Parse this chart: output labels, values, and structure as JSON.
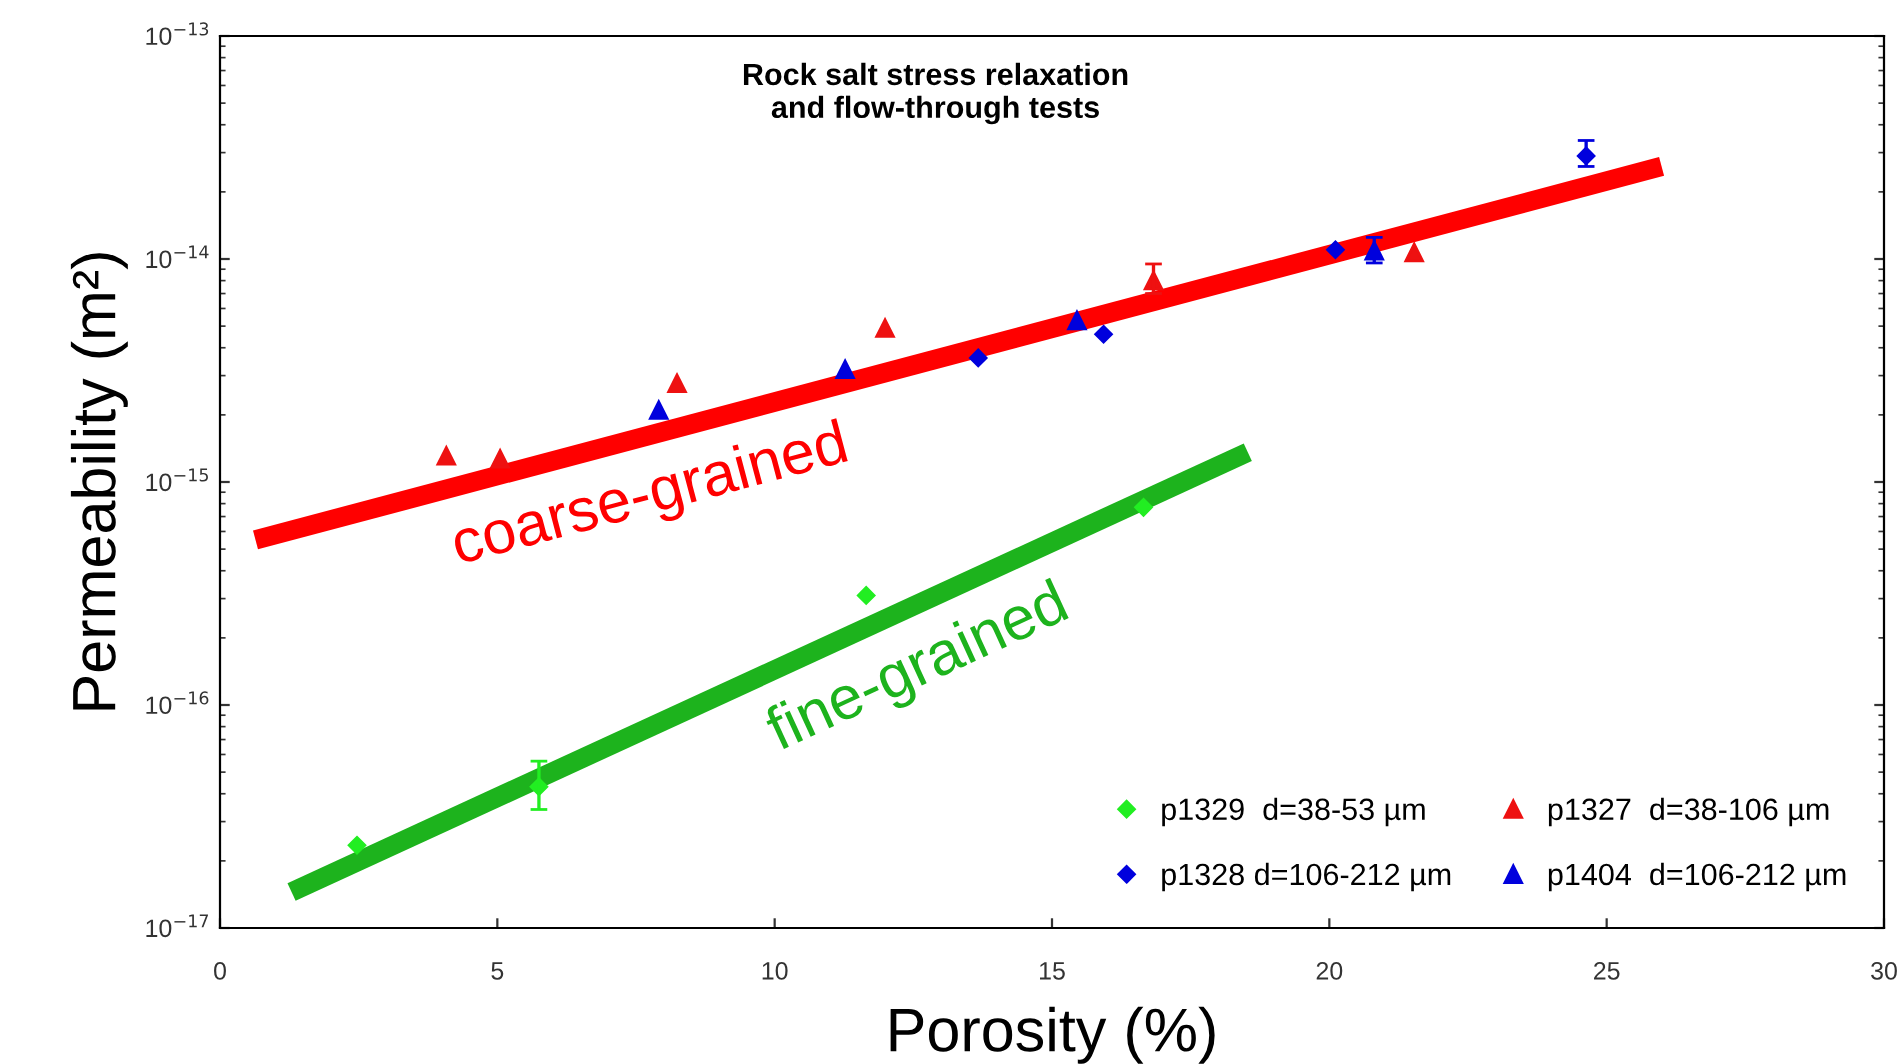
{
  "chart_data": {
    "type": "scatter",
    "title": "Rock salt stress relaxation\nand flow-through tests",
    "xlabel": "Porosity (%)",
    "ylabel": "Permeability (m²)",
    "log": "y",
    "xlim": [
      0,
      30
    ],
    "xticks": [
      0,
      5,
      10,
      15,
      20,
      25,
      30
    ],
    "ylim": [
      1e-17,
      1e-13
    ],
    "yticks": [
      {
        "value": 1e-17,
        "label": "10$^{−17}$"
      },
      {
        "value": 1e-16,
        "label": "10$^{−16}$"
      },
      {
        "value": 1e-15,
        "label": "10$^{−15}$"
      },
      {
        "value": 1e-14,
        "label": "10$^{−14}$"
      },
      {
        "value": 1e-13,
        "label": "10$^{−13}$"
      }
    ],
    "grid": false,
    "legend": "bottom right",
    "series": [
      {
        "name": "p1329  d=38-53 µm",
        "color": "#22ee22",
        "marker": "diamond",
        "x": [
          2.47,
          5.75,
          11.65,
          16.65
        ],
        "values": [
          2.35e-17,
          4.3e-17,
          3.1e-16,
          7.7e-16
        ],
        "errors": [
          null,
          [
            3.4e-17,
            5.6e-17
          ],
          null,
          null
        ]
      },
      {
        "name": "p1328 d=106-212 µm",
        "color": "#0000dd",
        "marker": "diamond",
        "x": [
          13.67,
          15.93,
          20.11,
          24.63
        ],
        "values": [
          3.6e-15,
          4.6e-15,
          1.1e-14,
          2.9e-14
        ],
        "errors": [
          null,
          null,
          null,
          [
            2.6e-14,
            3.4e-14
          ]
        ]
      },
      {
        "name": "p1327  d=38-106 µm",
        "color": "#ee1111",
        "marker": "triangle",
        "x": [
          4.08,
          5.05,
          8.24,
          11.99,
          16.83,
          21.53
        ],
        "values": [
          1.31e-15,
          1.27e-15,
          2.77e-15,
          4.9e-15,
          8e-15,
          1.07e-14
        ],
        "errors": [
          null,
          null,
          null,
          null,
          [
            7e-15,
            9.5e-15
          ],
          null
        ]
      },
      {
        "name": "p1404  d=106-212 µm",
        "color": "#0000dd",
        "marker": "triangle",
        "x": [
          7.91,
          11.27,
          15.45,
          20.81
        ],
        "values": [
          2.1e-15,
          3.2e-15,
          5.3e-15,
          1.09e-14
        ],
        "errors": [
          null,
          null,
          null,
          [
            9.6e-15,
            1.25e-14
          ]
        ]
      },
      {
        "type": "line",
        "color": "#ff0000",
        "x": [
          0.64,
          25.99
        ],
        "values": [
          5.5e-16,
          2.6e-14
        ]
      },
      {
        "type": "line",
        "color": "#1db31d",
        "x": [
          1.29,
          18.53
        ],
        "values": [
          1.45e-17,
          1.36e-15
        ]
      }
    ],
    "annotations": [
      "coarse-grained",
      "fine-grained"
    ]
  }
}
